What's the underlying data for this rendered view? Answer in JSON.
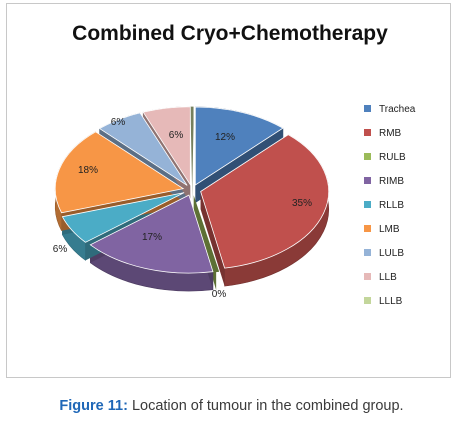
{
  "chart_data": {
    "type": "pie",
    "title": "Combined Cryo+Chemotherapy",
    "categories": [
      "Trachea",
      "RMB",
      "RULB",
      "RIMB",
      "RLLB",
      "LMB",
      "LULB",
      "LLB",
      "LLLB"
    ],
    "values": [
      12,
      35,
      0,
      17,
      6,
      18,
      6,
      6,
      0
    ],
    "data_labels": [
      "12%",
      "35%",
      "0%",
      "17%",
      "6%",
      "18%",
      "6%",
      "6%",
      ""
    ],
    "colors": [
      "#4f81bd",
      "#c0504d",
      "#9bbb59",
      "#8064a2",
      "#4bacc6",
      "#f79646",
      "#95b3d7",
      "#e6b9b8",
      "#c3d69b"
    ],
    "legend_position": "right",
    "style": "3d exploded pie"
  },
  "caption": {
    "label": "Figure 11:",
    "text": "Location of tumour in the combined group."
  }
}
